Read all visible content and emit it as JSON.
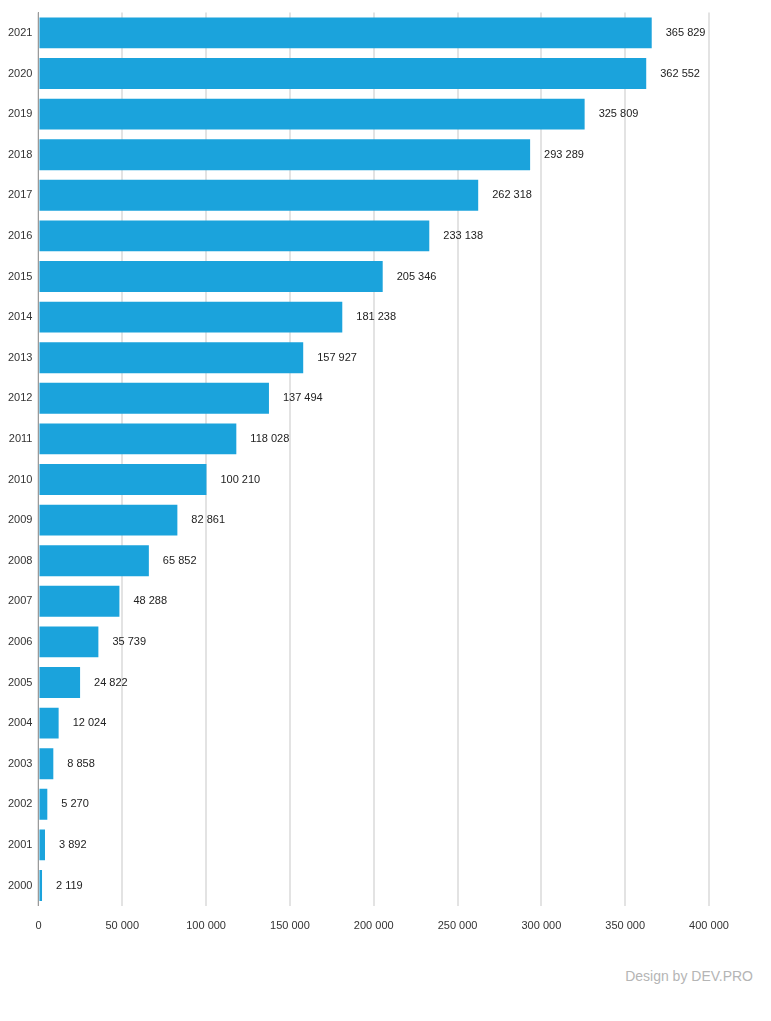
{
  "chart_data": {
    "type": "bar",
    "orientation": "horizontal",
    "categories": [
      "2021",
      "2020",
      "2019",
      "2018",
      "2017",
      "2016",
      "2015",
      "2014",
      "2013",
      "2012",
      "2011",
      "2010",
      "2009",
      "2008",
      "2007",
      "2006",
      "2005",
      "2004",
      "2003",
      "2002",
      "2001",
      "2000"
    ],
    "values": [
      365829,
      362552,
      325809,
      293289,
      262318,
      233138,
      205346,
      181238,
      157927,
      137494,
      118028,
      100210,
      82861,
      65852,
      48288,
      35739,
      24822,
      12024,
      8858,
      5270,
      3892,
      2119
    ],
    "value_labels": [
      "365 829",
      "362 552",
      "325 809",
      "293 289",
      "262 318",
      "233 138",
      "205 346",
      "181 238",
      "157 927",
      "137 494",
      "118 028",
      "100 210",
      "82 861",
      "65 852",
      "48 288",
      "35 739",
      "24 822",
      "12 024",
      "8 858",
      "5 270",
      "3 892",
      "2 119"
    ],
    "color": "#1ba3dc",
    "xlim": [
      0,
      400000
    ],
    "xticks": [
      0,
      {
        "value": 50000,
        "label": "50 000"
      },
      {
        "value": 100000,
        "label": "100 000"
      },
      {
        "value": 150000,
        "label": "150 000"
      },
      {
        "value": 200000,
        "label": "200 000"
      },
      {
        "value": 250000,
        "label": "250 000"
      },
      {
        "value": 300000,
        "label": "300 000"
      },
      {
        "value": 350000,
        "label": "350 000"
      },
      {
        "value": 400000,
        "label": "400 000"
      }
    ],
    "grid": true,
    "data_labels": true,
    "annotations": [
      "Design by DEV.PRO"
    ]
  }
}
